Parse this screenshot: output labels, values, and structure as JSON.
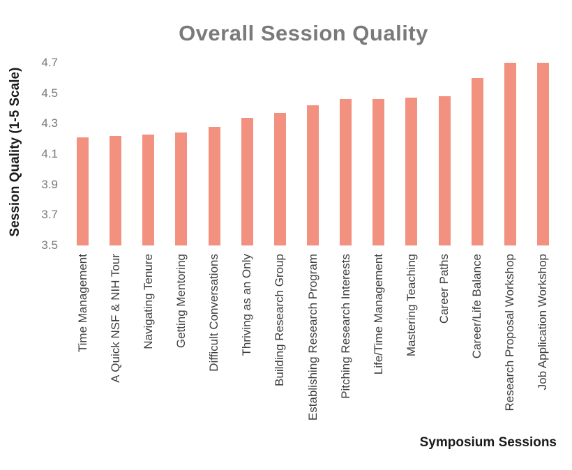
{
  "chart_data": {
    "type": "bar",
    "title": "Overall Session Quality",
    "xlabel": "Symposium Sessions",
    "ylabel": "Session Quality (1-5 Scale)",
    "categories": [
      "Time Management",
      "A Quick NSF & NIH Tour",
      "Navigating Tenure",
      "Getting Mentoring",
      "Difficult Conversations",
      "Thriving as an Only",
      "Building Research Group",
      "Establishing Research Program",
      "Pitching Research Interests",
      "Life/Time Management",
      "Mastering Teaching",
      "Career Paths",
      "Career/Life Balance",
      "Research Proposal Workshop",
      "Job Application Workshop"
    ],
    "values": [
      4.21,
      4.22,
      4.23,
      4.24,
      4.28,
      4.34,
      4.37,
      4.42,
      4.46,
      4.46,
      4.47,
      4.48,
      4.6,
      4.7,
      4.7
    ],
    "ylim": [
      3.5,
      4.7
    ],
    "yticks": [
      3.5,
      3.7,
      3.9,
      4.1,
      4.3,
      4.5,
      4.7
    ],
    "grid": false,
    "legend": "none",
    "bar_color": "#F2917F",
    "background_color": "#FFFFFF",
    "title_color": "#7A7A7A"
  }
}
